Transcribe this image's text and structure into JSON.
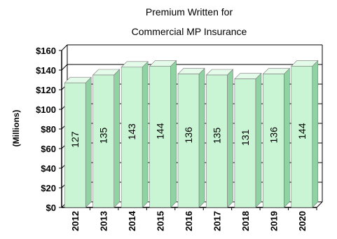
{
  "chart_data": {
    "type": "bar",
    "title": [
      "Premium Written for",
      "Commercial MP Insurance"
    ],
    "ylabel": "(Millions)",
    "xlabel": "",
    "categories": [
      "2012",
      "2013",
      "2014",
      "2015",
      "2016",
      "2017",
      "2018",
      "2019",
      "2020"
    ],
    "values": [
      127,
      135,
      143,
      144,
      136,
      135,
      131,
      136,
      144
    ],
    "data_labels": [
      "127",
      "135",
      "143",
      "144",
      "136",
      "135",
      "131",
      "136",
      "144"
    ],
    "ylim": [
      0,
      160
    ],
    "yticks": [
      0,
      20,
      40,
      60,
      80,
      100,
      120,
      140,
      160
    ],
    "ytick_labels": [
      "$0",
      "$20",
      "$40",
      "$60",
      "$80",
      "$100",
      "$120",
      "$140",
      "$160"
    ],
    "grid": true,
    "legend": "none",
    "bar_color": "#c9f5d4",
    "bar_side_color": "#8fd3a3",
    "bar_top_color": "#e4fbe9"
  }
}
